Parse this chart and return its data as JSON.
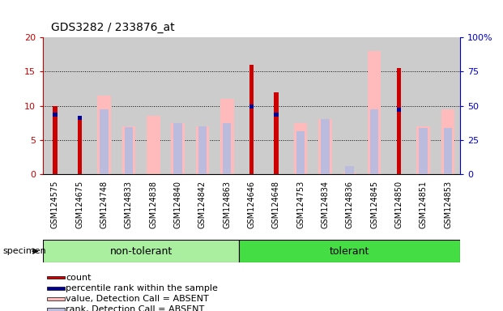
{
  "title": "GDS3282 / 233876_at",
  "samples": [
    "GSM124575",
    "GSM124675",
    "GSM124748",
    "GSM124833",
    "GSM124838",
    "GSM124840",
    "GSM124842",
    "GSM124863",
    "GSM124646",
    "GSM124648",
    "GSM124753",
    "GSM124834",
    "GSM124836",
    "GSM124845",
    "GSM124850",
    "GSM124851",
    "GSM124853"
  ],
  "groups": [
    {
      "name": "non-tolerant",
      "color": "#aaeea0",
      "dark_color": "#44cc44",
      "start": 0,
      "end": 8
    },
    {
      "name": "tolerant",
      "color": "#44dd44",
      "dark_color": "#22bb22",
      "start": 8,
      "end": 17
    }
  ],
  "count_values": [
    10,
    8,
    0,
    0,
    0,
    0,
    0,
    0,
    16,
    12,
    0,
    0,
    0,
    0,
    15.5,
    0,
    0
  ],
  "percentile_values": [
    9.0,
    8.5,
    0,
    0,
    0,
    0,
    0,
    0,
    10.2,
    9.0,
    0,
    0,
    0,
    0,
    9.7,
    0,
    0
  ],
  "absent_value_values": [
    0,
    0,
    11.5,
    7.0,
    8.5,
    7.5,
    7.0,
    11.0,
    0,
    0,
    7.5,
    8.0,
    0.3,
    18.0,
    0,
    7.0,
    9.5
  ],
  "absent_rank_values": [
    0,
    0,
    9.5,
    6.9,
    0,
    7.5,
    7.0,
    7.5,
    0,
    0,
    6.3,
    8.0,
    1.2,
    9.5,
    0,
    6.7,
    6.7
  ],
  "ylim_left": [
    0,
    20
  ],
  "ylim_right": [
    0,
    100
  ],
  "y_ticks_left": [
    0,
    5,
    10,
    15,
    20
  ],
  "y_ticks_right": [
    0,
    25,
    50,
    75,
    100
  ],
  "colors": {
    "count": "#cc0000",
    "percentile": "#000099",
    "absent_value": "#ffbbbb",
    "absent_rank": "#bbbbdd",
    "tick_left": "#cc0000",
    "tick_right": "#0000cc",
    "bg_samples": "#cccccc",
    "grid_line": "#000000"
  },
  "legend_items": [
    {
      "label": "count",
      "color": "#cc0000"
    },
    {
      "label": "percentile rank within the sample",
      "color": "#000099"
    },
    {
      "label": "value, Detection Call = ABSENT",
      "color": "#ffbbbb"
    },
    {
      "label": "rank, Detection Call = ABSENT",
      "color": "#bbbbdd"
    }
  ],
  "bar_widths": {
    "absent_value": 0.55,
    "absent_rank": 0.35,
    "count": 0.18,
    "percentile": 0.18
  }
}
